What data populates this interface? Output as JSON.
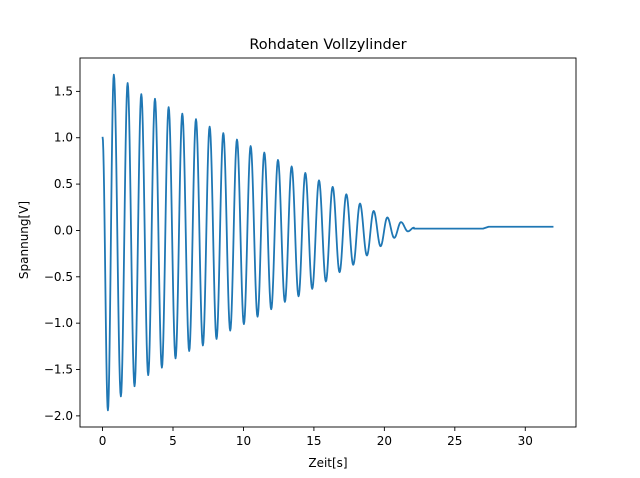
{
  "chart_data": {
    "type": "line",
    "title": "Rohdaten Vollzylinder",
    "xlabel": "Zeit[s]",
    "ylabel": "Spannung[V]",
    "xlim": [
      -1.6,
      33.6
    ],
    "ylim": [
      -2.12,
      1.86
    ],
    "xticks": [
      0,
      5,
      10,
      15,
      20,
      25,
      30
    ],
    "yticks": [
      -2.0,
      -1.5,
      -1.0,
      -0.5,
      0.0,
      0.5,
      1.0,
      1.5
    ],
    "xtick_labels": [
      "0",
      "5",
      "10",
      "15",
      "20",
      "25",
      "30"
    ],
    "ytick_labels": [
      "−2.0",
      "−1.5",
      "−1.0",
      "−0.5",
      "0.0",
      "0.5",
      "1.0",
      "1.5"
    ],
    "grid": false,
    "series": [
      {
        "color": "#1f77b4",
        "extrema": [
          [
            0.0,
            1.01
          ],
          [
            0.38,
            -1.94
          ],
          [
            0.8,
            1.68
          ],
          [
            1.3,
            -1.79
          ],
          [
            1.78,
            1.59
          ],
          [
            2.27,
            -1.68
          ],
          [
            2.75,
            1.47
          ],
          [
            3.24,
            -1.56
          ],
          [
            3.72,
            1.42
          ],
          [
            4.21,
            -1.48
          ],
          [
            4.69,
            1.33
          ],
          [
            5.18,
            -1.38
          ],
          [
            5.66,
            1.26
          ],
          [
            6.15,
            -1.3
          ],
          [
            6.63,
            1.2
          ],
          [
            7.12,
            -1.24
          ],
          [
            7.6,
            1.12
          ],
          [
            8.09,
            -1.17
          ],
          [
            8.57,
            1.05
          ],
          [
            9.06,
            -1.08
          ],
          [
            9.54,
            0.98
          ],
          [
            10.03,
            -1.01
          ],
          [
            10.51,
            0.91
          ],
          [
            11.0,
            -0.93
          ],
          [
            11.48,
            0.84
          ],
          [
            11.97,
            -0.85
          ],
          [
            12.45,
            0.76
          ],
          [
            12.94,
            -0.77
          ],
          [
            13.42,
            0.69
          ],
          [
            13.91,
            -0.71
          ],
          [
            14.39,
            0.62
          ],
          [
            14.88,
            -0.63
          ],
          [
            15.36,
            0.54
          ],
          [
            15.85,
            -0.55
          ],
          [
            16.33,
            0.47
          ],
          [
            16.82,
            -0.45
          ],
          [
            17.3,
            0.39
          ],
          [
            17.79,
            -0.37
          ],
          [
            18.27,
            0.29
          ],
          [
            18.76,
            -0.27
          ],
          [
            19.24,
            0.21
          ],
          [
            19.73,
            -0.17
          ],
          [
            20.21,
            0.14
          ],
          [
            20.7,
            -0.08
          ],
          [
            21.18,
            0.09
          ],
          [
            21.67,
            -0.01
          ],
          [
            22.1,
            0.03
          ]
        ],
        "tail": [
          [
            22.1,
            0.02
          ],
          [
            27.0,
            0.02
          ],
          [
            27.4,
            0.04
          ],
          [
            32.0,
            0.04
          ]
        ]
      }
    ]
  }
}
